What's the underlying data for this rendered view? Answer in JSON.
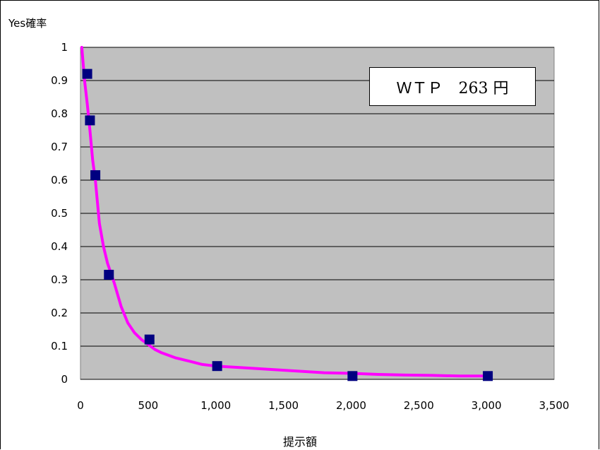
{
  "chart_data": {
    "type": "scatter",
    "title": "",
    "ylabel": "Yes確率",
    "xlabel": "提示額",
    "xlim": [
      0,
      3500
    ],
    "ylim": [
      0,
      1
    ],
    "x_ticks": [
      "0",
      "500",
      "1,000",
      "1,500",
      "2,000",
      "2,500",
      "3,000",
      "3,500"
    ],
    "y_ticks": [
      "0",
      "0.1",
      "0.2",
      "0.3",
      "0.4",
      "0.5",
      "0.6",
      "0.7",
      "0.8",
      "0.9",
      "1"
    ],
    "grid": "horizontal",
    "plot_background": "#C0C0C0",
    "series": [
      {
        "kind": "markers",
        "color": "#000080",
        "marker": "square",
        "x": [
          50,
          70,
          110,
          210,
          510,
          1010,
          2010,
          3010
        ],
        "y": [
          0.92,
          0.78,
          0.615,
          0.315,
          0.12,
          0.04,
          0.01,
          0.01
        ]
      },
      {
        "kind": "line",
        "color": "#FF00FF",
        "x": [
          10,
          30,
          50,
          70,
          90,
          110,
          140,
          170,
          200,
          250,
          300,
          350,
          400,
          450,
          500,
          550,
          600,
          700,
          800,
          900,
          1000,
          1200,
          1400,
          1600,
          1800,
          2000,
          2200,
          2400,
          2600,
          2800,
          3000
        ],
        "y": [
          1.0,
          0.9,
          0.83,
          0.75,
          0.66,
          0.6,
          0.47,
          0.4,
          0.35,
          0.29,
          0.22,
          0.17,
          0.14,
          0.12,
          0.105,
          0.09,
          0.08,
          0.065,
          0.055,
          0.045,
          0.04,
          0.035,
          0.03,
          0.025,
          0.02,
          0.018,
          0.015,
          0.013,
          0.012,
          0.01,
          0.01
        ]
      }
    ],
    "annotation": "ＷＴＰ　263 円"
  }
}
